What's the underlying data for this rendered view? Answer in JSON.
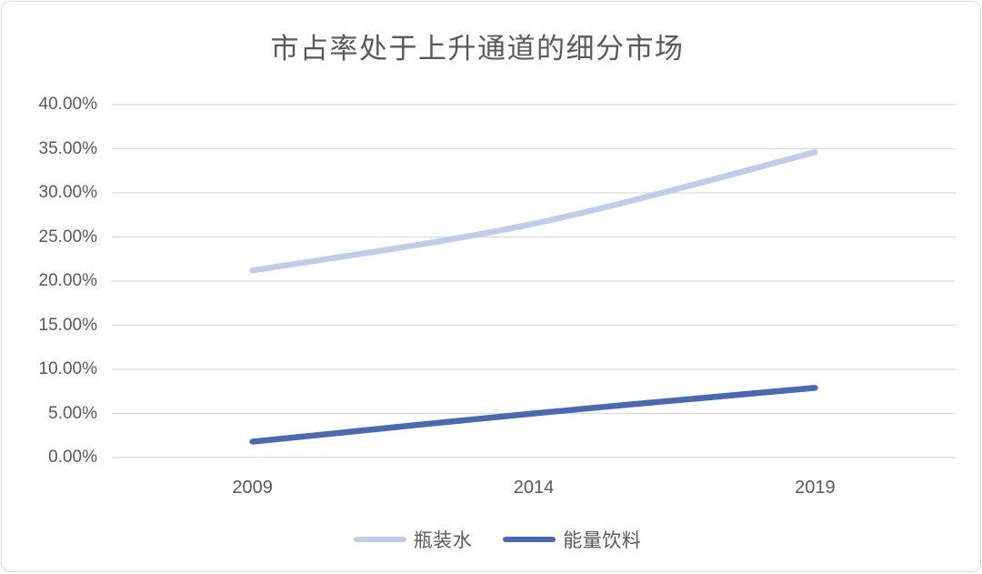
{
  "chart_data": {
    "type": "line",
    "title": "市占率处于上升通道的细分市场",
    "categories": [
      "2009",
      "2014",
      "2019"
    ],
    "series": [
      {
        "name": "瓶装水",
        "values": [
          21.2,
          26.5,
          34.6
        ],
        "color": "#C2CBE8"
      },
      {
        "name": "能量饮料",
        "values": [
          1.8,
          5.0,
          7.9
        ],
        "color": "#4A69B2"
      }
    ],
    "y_tick_labels": [
      "40.00%",
      "35.00%",
      "30.00%",
      "25.00%",
      "20.00%",
      "15.00%",
      "10.00%",
      "5.00%",
      "0.00%"
    ],
    "ylim": [
      0,
      40
    ],
    "y_tick_step": 5,
    "xlabel": "",
    "ylabel": "",
    "grid": true,
    "legend_position": "bottom"
  },
  "colors": {
    "gridline": "#D9D9D9",
    "axis_text": "#595959",
    "title_text": "#595959",
    "card_border": "#D9D9D9",
    "background": "#FFFFFF"
  }
}
